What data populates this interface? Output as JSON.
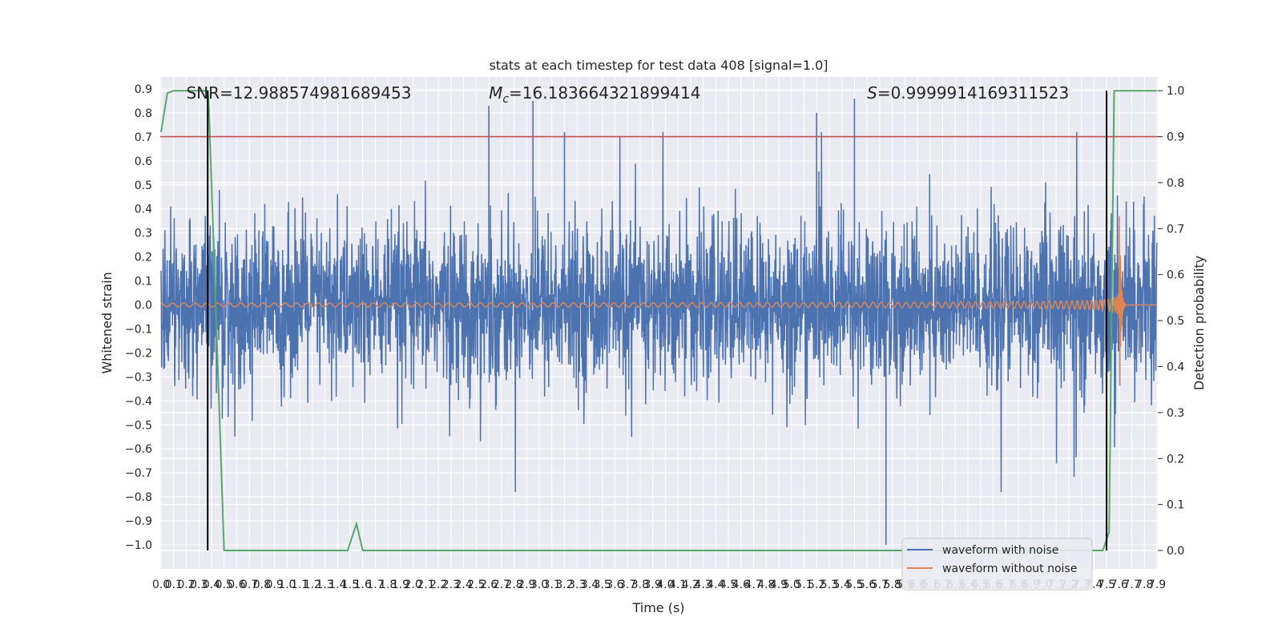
{
  "chart_data": {
    "type": "line",
    "title": "stats at each timestep for test data 408 [signal=1.0]",
    "xlabel": "Time (s)",
    "ylabel": "Whitened strain",
    "y2label": "Detection probability",
    "xlim": [
      0.0,
      7.9
    ],
    "ylim": [
      -1.1,
      0.95
    ],
    "y2lim": [
      -0.04,
      1.03
    ],
    "x_ticks": [
      "0.0",
      "0.1",
      "0.2",
      "0.3",
      "0.4",
      "0.5",
      "0.6",
      "0.7",
      "0.8",
      "0.9",
      "1.0",
      "1.1",
      "1.2",
      "1.3",
      "1.4",
      "1.5",
      "1.6",
      "1.7",
      "1.8",
      "1.9",
      "2.0",
      "2.1",
      "2.2",
      "2.3",
      "2.4",
      "2.5",
      "2.6",
      "2.7",
      "2.8",
      "2.9",
      "3.0",
      "3.1",
      "3.2",
      "3.3",
      "3.4",
      "3.5",
      "3.6",
      "3.7",
      "3.8",
      "3.9",
      "4.0",
      "4.1",
      "4.2",
      "4.3",
      "4.4",
      "4.5",
      "4.6",
      "4.7",
      "4.8",
      "4.9",
      "5.0",
      "5.1",
      "5.2",
      "5.3",
      "5.4",
      "5.5",
      "5.6",
      "5.7",
      "5.8",
      "5.9",
      "6.0",
      "6.1",
      "6.2",
      "6.3",
      "6.4",
      "6.5",
      "6.6",
      "6.7",
      "6.8",
      "6.9",
      "7.0",
      "7.1",
      "7.2",
      "7.3",
      "7.4",
      "7.5",
      "7.6",
      "7.7",
      "7.8",
      "7.9"
    ],
    "y_ticks": [
      "0.9",
      "0.8",
      "0.7",
      "0.6",
      "0.5",
      "0.4",
      "0.3",
      "0.2",
      "0.1",
      "0.0",
      "−0.1",
      "−0.2",
      "−0.3",
      "−0.4",
      "−0.5",
      "−0.6",
      "−0.7",
      "−0.8",
      "−0.9",
      "−1.0"
    ],
    "y_tick_values": [
      0.9,
      0.8,
      0.7,
      0.6,
      0.5,
      0.4,
      0.3,
      0.2,
      0.1,
      0.0,
      -0.1,
      -0.2,
      -0.3,
      -0.4,
      -0.5,
      -0.6,
      -0.7,
      -0.8,
      -0.9,
      -1.0
    ],
    "y2_ticks": [
      "1.0",
      "0.9",
      "0.8",
      "0.7",
      "0.6",
      "0.5",
      "0.4",
      "0.3",
      "0.2",
      "0.1",
      "0.0"
    ],
    "y2_tick_values": [
      1.0,
      0.9,
      0.8,
      0.7,
      0.6,
      0.5,
      0.4,
      0.3,
      0.2,
      0.1,
      0.0
    ],
    "annotations": [
      {
        "prefix": "SNR",
        "sub": "",
        "text": "=12.988574981689453",
        "x": 0.2
      },
      {
        "prefix": "M",
        "sub": "c",
        "text": "=16.183664321899414",
        "x": 2.6
      },
      {
        "prefix": "S",
        "sub": "",
        "text": "=0.9999914169311523",
        "x": 5.6
      }
    ],
    "threshold": {
      "value": 0.9,
      "axis": "y2",
      "color": "#c44e52"
    },
    "vertical_lines": [
      0.37,
      7.5
    ],
    "series": [
      {
        "name": "waveform with noise",
        "color": "#4c72b0",
        "kind": "noise",
        "typical_amplitude": 0.3,
        "min": -1.0,
        "max": 0.85,
        "spike_times": [
          2.6,
          2.95,
          5.5,
          5.75
        ]
      },
      {
        "name": "waveform without noise",
        "color": "#dd8452",
        "kind": "chirp",
        "start_amplitude": 0.01,
        "peak_amplitude": 0.5,
        "merger_time": 7.6,
        "ringdown_end": 7.65
      },
      {
        "name": "detection probability",
        "color": "#55a868",
        "axis": "y2",
        "x": [
          0.0,
          0.05,
          0.1,
          0.37,
          0.38,
          0.5,
          1.35,
          1.48,
          1.55,
          1.6,
          7.4,
          7.47,
          7.52,
          7.56,
          7.9
        ],
        "y": [
          0.91,
          0.995,
          1.0,
          1.0,
          0.96,
          0.0,
          0.0,
          0.0,
          0.058,
          0.0,
          0.0,
          0.0,
          0.04,
          1.0,
          1.0
        ]
      }
    ],
    "legend": {
      "location": "lower-right",
      "entries": [
        "waveform with noise",
        "waveform without noise"
      ]
    }
  }
}
